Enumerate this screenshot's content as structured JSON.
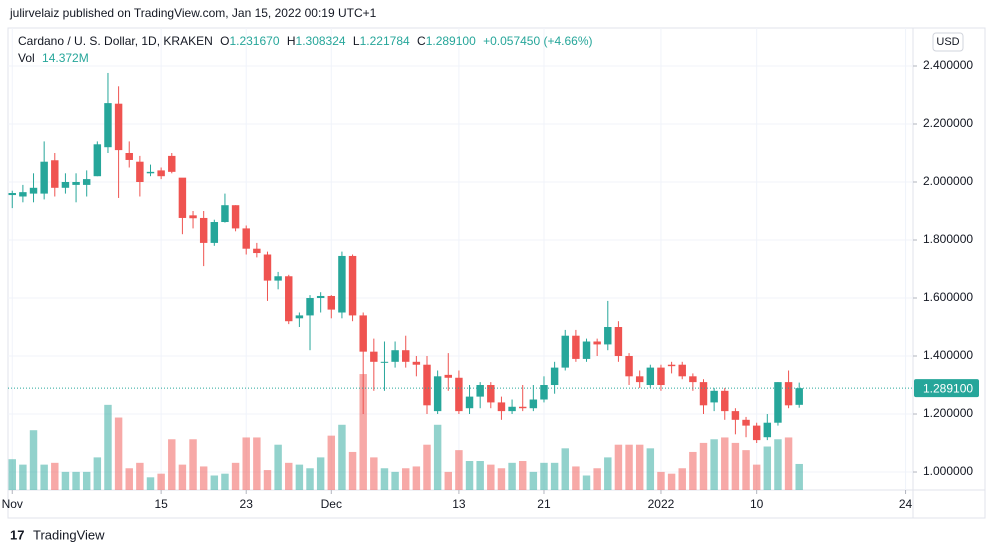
{
  "header": {
    "published": "julirvelaiz published on TradingView.com, Jan 15, 2022 00:19 UTC+1"
  },
  "footer": {
    "brand": "TradingView"
  },
  "chart_data": {
    "type": "candlestick",
    "title": "Cardano / U. S. Dollar, 1D, KRAKEN",
    "currency": "USD",
    "legend": {
      "o_label": "O",
      "open": "1.231670",
      "h_label": "H",
      "high": "1.308324",
      "l_label": "L",
      "low": "1.221784",
      "c_label": "C",
      "close": "1.289100",
      "change": "+0.057450 (+4.66%)",
      "vol_label": "Vol",
      "volume": "14.372M"
    },
    "up_color": "#26a69a",
    "down_color": "#ef5350",
    "x": [
      0,
      1,
      2,
      3,
      4,
      5,
      6,
      7,
      8,
      9,
      10,
      11,
      12,
      13,
      14,
      15,
      16,
      17,
      18,
      19,
      20,
      21,
      22,
      23,
      24,
      25,
      26,
      27,
      28,
      29,
      30,
      31,
      32,
      33,
      34,
      35,
      36,
      37,
      38,
      39,
      40,
      41,
      42,
      43,
      44,
      45,
      46,
      47,
      48,
      49,
      50,
      51,
      52,
      53,
      54,
      55,
      56,
      57,
      58,
      59,
      60,
      61,
      62,
      63,
      64,
      65,
      66,
      67,
      68,
      69,
      70,
      71,
      72,
      73,
      74
    ],
    "open": [
      1.955,
      1.95,
      1.96,
      1.96,
      2.075,
      1.98,
      1.99,
      1.99,
      2.02,
      2.12,
      2.27,
      2.1,
      2.07,
      2.03,
      2.04,
      2.09,
      2.015,
      1.885,
      1.876,
      1.79,
      1.862,
      1.92,
      1.84,
      1.77,
      1.75,
      1.66,
      1.675,
      1.53,
      1.54,
      1.6,
      1.607,
      1.55,
      1.745,
      1.54,
      1.415,
      1.38,
      1.38,
      1.42,
      1.38,
      1.37,
      1.21,
      1.335,
      1.325,
      1.22,
      1.26,
      1.3,
      1.24,
      1.21,
      1.225,
      1.22,
      1.25,
      1.3,
      1.36,
      1.47,
      1.39,
      1.45,
      1.44,
      1.5,
      1.4,
      1.33,
      1.3,
      1.36,
      1.37,
      1.37,
      1.33,
      1.31,
      1.24,
      1.28,
      1.21,
      1.18,
      1.16,
      1.12,
      1.17,
      1.31,
      1.23167
    ],
    "high": [
      1.97,
      1.99,
      2.03,
      2.14,
      2.1,
      2.03,
      2.03,
      2.04,
      2.14,
      2.376,
      2.33,
      2.14,
      2.09,
      2.06,
      2.05,
      2.1,
      2.0,
      1.9,
      1.9,
      1.87,
      1.96,
      1.92,
      1.85,
      1.79,
      1.76,
      1.69,
      1.68,
      1.55,
      1.61,
      1.62,
      1.61,
      1.76,
      1.75,
      1.55,
      1.46,
      1.45,
      1.45,
      1.47,
      1.4,
      1.4,
      1.35,
      1.41,
      1.35,
      1.3,
      1.31,
      1.31,
      1.26,
      1.25,
      1.3,
      1.3,
      1.33,
      1.38,
      1.49,
      1.49,
      1.46,
      1.46,
      1.59,
      1.52,
      1.41,
      1.35,
      1.37,
      1.37,
      1.38,
      1.38,
      1.34,
      1.32,
      1.29,
      1.29,
      1.22,
      1.19,
      1.17,
      1.2,
      1.31,
      1.35,
      1.308324
    ],
    "low": [
      1.91,
      1.93,
      1.93,
      1.94,
      1.95,
      1.96,
      1.93,
      1.95,
      2.02,
      2.1,
      1.945,
      2.05,
      1.95,
      2.02,
      2.01,
      2.03,
      1.82,
      1.84,
      1.71,
      1.78,
      1.86,
      1.83,
      1.75,
      1.74,
      1.59,
      1.63,
      1.51,
      1.5,
      1.42,
      1.55,
      1.53,
      1.53,
      1.52,
      1.2,
      1.28,
      1.28,
      1.36,
      1.36,
      1.33,
      1.2,
      1.2,
      1.28,
      1.2,
      1.2,
      1.22,
      1.22,
      1.18,
      1.2,
      1.21,
      1.21,
      1.24,
      1.27,
      1.35,
      1.38,
      1.38,
      1.4,
      1.42,
      1.38,
      1.3,
      1.29,
      1.29,
      1.28,
      1.34,
      1.32,
      1.28,
      1.2,
      1.21,
      1.18,
      1.13,
      1.12,
      1.1,
      1.11,
      1.16,
      1.22,
      1.221784
    ],
    "close": [
      1.962,
      1.965,
      1.98,
      2.07,
      1.98,
      2.0,
      2.0,
      2.01,
      2.13,
      2.272,
      2.11,
      2.076,
      2.0,
      2.035,
      2.02,
      2.035,
      1.876,
      1.875,
      1.79,
      1.862,
      1.92,
      1.84,
      1.77,
      1.755,
      1.66,
      1.675,
      1.52,
      1.54,
      1.6,
      1.607,
      1.56,
      1.745,
      1.54,
      1.415,
      1.38,
      1.38,
      1.42,
      1.38,
      1.37,
      1.23,
      1.33,
      1.325,
      1.21,
      1.26,
      1.3,
      1.24,
      1.21,
      1.225,
      1.22,
      1.25,
      1.3,
      1.36,
      1.47,
      1.39,
      1.45,
      1.44,
      1.5,
      1.4,
      1.33,
      1.31,
      1.36,
      1.3,
      1.365,
      1.33,
      1.31,
      1.23,
      1.28,
      1.21,
      1.18,
      1.16,
      1.11,
      1.17,
      1.31,
      1.23,
      1.2891
    ],
    "volume": [
      17,
      14,
      33,
      14,
      15,
      10,
      10,
      10,
      18,
      47,
      40,
      12,
      15,
      7,
      9,
      28,
      14,
      28,
      13,
      8,
      9,
      15,
      29,
      29,
      11,
      25,
      15,
      14,
      12,
      18,
      30,
      36,
      21,
      64,
      18,
      12,
      10,
      12,
      13,
      25,
      36,
      10,
      22,
      16,
      16,
      14,
      12,
      15,
      16,
      10,
      15,
      15,
      23,
      13,
      8,
      12,
      18,
      25,
      25,
      25,
      23,
      10,
      9,
      12,
      21,
      26,
      28,
      29,
      26,
      22,
      14,
      24,
      28,
      29,
      14.372
    ],
    "volume_lim": [
      0,
      255
    ],
    "xlim": [
      -0.4,
      84.7
    ],
    "xticks": [
      {
        "value": 0,
        "label": "Nov"
      },
      {
        "value": 14,
        "label": "15"
      },
      {
        "value": 22,
        "label": "23"
      },
      {
        "value": 30,
        "label": "Dec"
      },
      {
        "value": 42,
        "label": "13"
      },
      {
        "value": 50,
        "label": "21"
      },
      {
        "value": 61,
        "label": "2022"
      },
      {
        "value": 70,
        "label": "10"
      },
      {
        "value": 84,
        "label": "24"
      }
    ],
    "ylim": [
      0.938,
      2.531
    ],
    "yticks": [
      {
        "value": 1,
        "label": "1.000000"
      },
      {
        "value": 1.2,
        "label": "1.200000"
      },
      {
        "value": 1.4,
        "label": "1.400000"
      },
      {
        "value": 1.6,
        "label": "1.600000"
      },
      {
        "value": 1.8,
        "label": "1.800000"
      },
      {
        "value": 2,
        "label": "2.000000"
      },
      {
        "value": 2.2,
        "label": "2.200000"
      },
      {
        "value": 2.4,
        "label": "2.400000"
      }
    ],
    "price_line": {
      "value": 1.2891,
      "label": "1.289100"
    },
    "grid": true
  }
}
